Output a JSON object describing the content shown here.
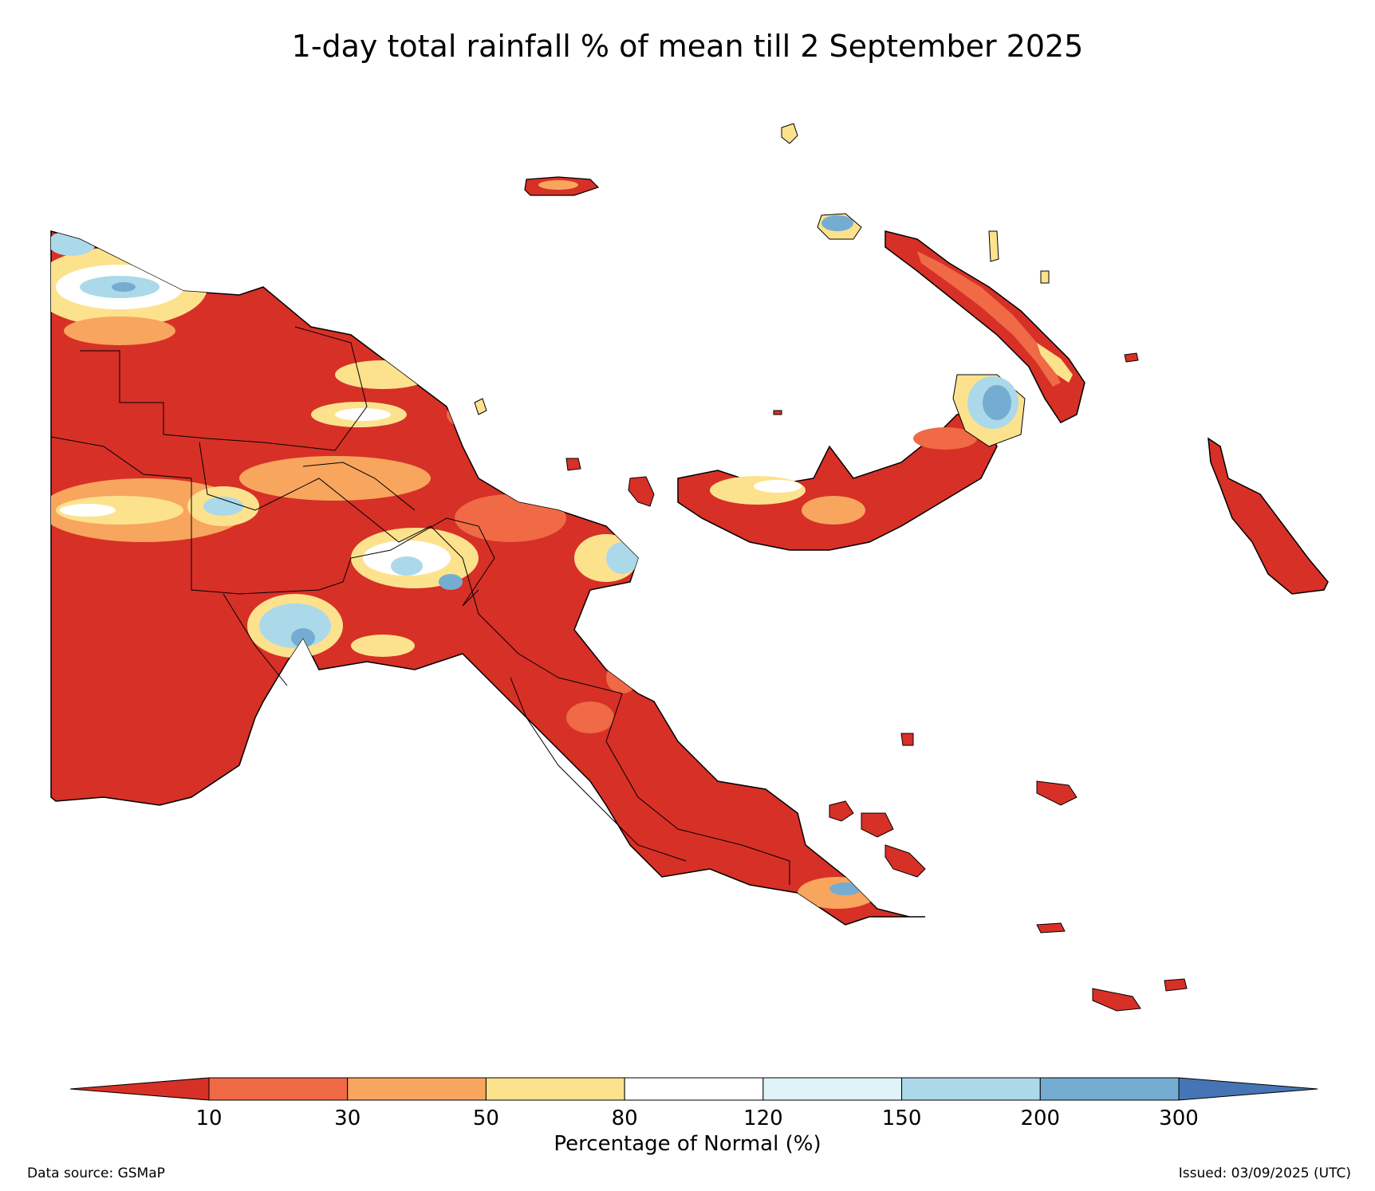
{
  "title": "1-day total rainfall % of mean till 2 September 2025",
  "colorbar": {
    "title": "Percentage of Normal (%)",
    "ticks": [
      "10",
      "30",
      "50",
      "80",
      "120",
      "150",
      "200",
      "300"
    ],
    "colors": [
      "#d73027",
      "#ef6a45",
      "#f8a55e",
      "#fde28e",
      "#ffffff",
      "#e0f3f8",
      "#abd9e9",
      "#74add1",
      "#4575b4"
    ]
  },
  "footer": {
    "source": "Data source: GSMaP",
    "issued": "Issued: 03/09/2025 (UTC)"
  }
}
